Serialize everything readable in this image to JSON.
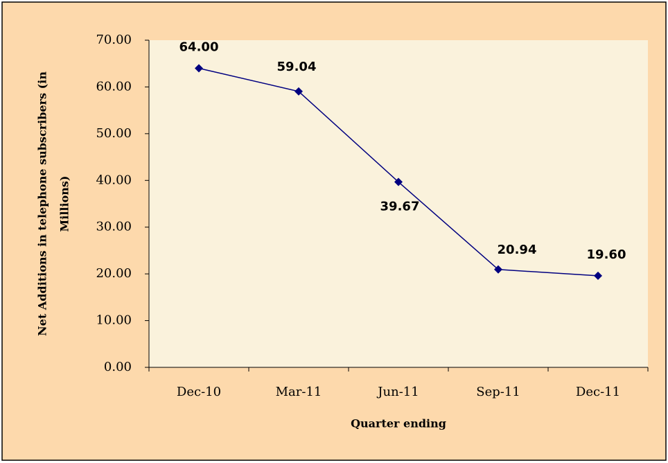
{
  "chart_data": {
    "type": "line",
    "y_label_lines": [
      "Net Additions in telephone subscribers (in",
      "Millions)"
    ],
    "x_label": "Quarter ending",
    "categories": [
      "Dec-10",
      "Mar-11",
      "Jun-11",
      "Sep-11",
      "Dec-11"
    ],
    "values": [
      64,
      59.04,
      39.67,
      20.94,
      19.6
    ],
    "value_labels": [
      "64.00",
      "59.04",
      "39.67",
      "20.94",
      "19.60"
    ],
    "color": "#000080",
    "ylim": [
      0,
      70
    ],
    "yticks": [
      {
        "value": 0,
        "label": "0.00"
      },
      {
        "value": 10,
        "label": "10.00"
      },
      {
        "value": 20,
        "label": "20.00"
      },
      {
        "value": 30,
        "label": "30.00"
      },
      {
        "value": 40,
        "label": "40.00"
      },
      {
        "value": 50,
        "label": "50.00"
      },
      {
        "value": 60,
        "label": "60.00"
      },
      {
        "value": 70,
        "label": "70.00"
      }
    ],
    "grid": false
  }
}
